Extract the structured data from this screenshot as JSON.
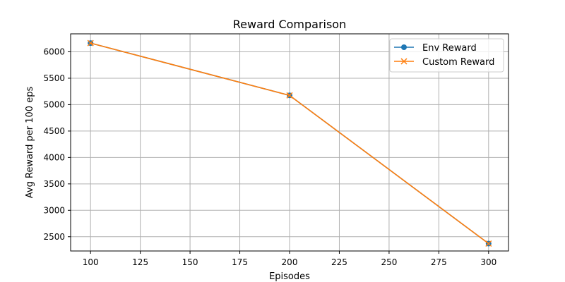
{
  "chart_data": {
    "type": "line",
    "title": "Reward Comparison",
    "xlabel": "Episodes",
    "ylabel": "Avg Reward per 100 eps",
    "x": [
      100,
      200,
      300
    ],
    "series": [
      {
        "name": "Env Reward",
        "values": [
          6165,
          5175,
          2370
        ],
        "color": "#1f77b4",
        "marker": "circle"
      },
      {
        "name": "Custom Reward",
        "values": [
          6165,
          5175,
          2370
        ],
        "color": "#ff7f0e",
        "marker": "x"
      }
    ],
    "xticks": [
      100,
      125,
      150,
      175,
      200,
      225,
      250,
      275,
      300
    ],
    "yticks": [
      2500,
      3000,
      3500,
      4000,
      4500,
      5000,
      5500,
      6000
    ],
    "xlim": [
      90,
      310
    ],
    "ylim": [
      2230,
      6340
    ],
    "grid": true,
    "legend_position": "top-right"
  }
}
